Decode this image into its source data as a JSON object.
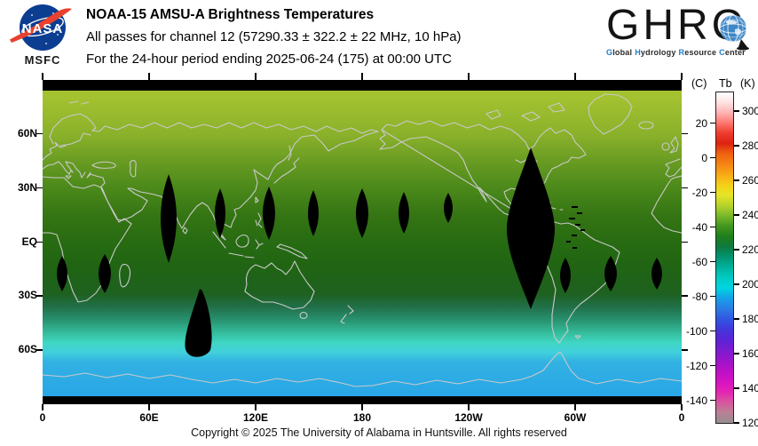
{
  "header": {
    "nasa": {
      "wordmark": "NASA",
      "center": "MSFC"
    },
    "title": "NOAA-15 AMSU-A Brightness Temperatures",
    "subtitle": "All passes for channel 12 (57290.33 ± 322.2 ± 22 MHz, 10 hPa)",
    "period_line": "For the 24-hour period ending 2025-06-24 (175) at 00:00 UTC",
    "ghrc": {
      "wordmark_prefix": "GHR",
      "wordmark_c": "C",
      "tagline": [
        {
          "initial": "G",
          "rest": "lobal"
        },
        {
          "initial": "H",
          "rest": "ydrology"
        },
        {
          "initial": "R",
          "rest": "esource"
        },
        {
          "initial": "C",
          "rest": "enter"
        }
      ],
      "initial_color": "#1f7dc4"
    }
  },
  "map": {
    "projection_note": "global cylindrical map, longitudes 0-360E left to right, 90N top to 90S bottom",
    "lat_ticks": [
      {
        "label": "60N",
        "lat": 60
      },
      {
        "label": "30N",
        "lat": 30
      },
      {
        "label": "EQ",
        "lat": 0
      },
      {
        "label": "30S",
        "lat": -30
      },
      {
        "label": "60S",
        "lat": -60
      }
    ],
    "lon_ticks": [
      {
        "label": "0",
        "lon": 0
      },
      {
        "label": "60E",
        "lon": 60
      },
      {
        "label": "120E",
        "lon": 120
      },
      {
        "label": "180",
        "lon": 180
      },
      {
        "label": "120W",
        "lon": 240
      },
      {
        "label": "60W",
        "lon": 300
      },
      {
        "label": "0",
        "lon": 360
      }
    ],
    "coastline_color": "#c9c9c9",
    "no_data_color": "#000000"
  },
  "colorbar": {
    "unit_celsius": "(C)",
    "quantity": "Tb",
    "unit_kelvin": "(K)",
    "kelvin_range": [
      119.7,
      311.5
    ],
    "kelvin_ticks": [
      300,
      280,
      260,
      240,
      220,
      200,
      180,
      160,
      140,
      120
    ],
    "celsius_ticks": [
      20,
      0,
      -20,
      -40,
      -60,
      -80,
      -100,
      -120,
      -140
    ],
    "gradient": [
      {
        "k": 311.5,
        "color": "#ffffff"
      },
      {
        "k": 306,
        "color": "#ffe4e4"
      },
      {
        "k": 300,
        "color": "#ffb6b6"
      },
      {
        "k": 294,
        "color": "#ff7a72"
      },
      {
        "k": 288,
        "color": "#ee3c2e"
      },
      {
        "k": 282,
        "color": "#dd2211"
      },
      {
        "k": 276,
        "color": "#ef6110"
      },
      {
        "k": 270,
        "color": "#f58313"
      },
      {
        "k": 264,
        "color": "#f8a915"
      },
      {
        "k": 258,
        "color": "#f6cf17"
      },
      {
        "k": 252,
        "color": "#e7e426"
      },
      {
        "k": 246,
        "color": "#b8d32a"
      },
      {
        "k": 240,
        "color": "#7ab829"
      },
      {
        "k": 234,
        "color": "#43971f"
      },
      {
        "k": 228,
        "color": "#1f7f1a"
      },
      {
        "k": 222,
        "color": "#0e7a40"
      },
      {
        "k": 216,
        "color": "#029470"
      },
      {
        "k": 210,
        "color": "#00b29d"
      },
      {
        "k": 204,
        "color": "#00cbc3"
      },
      {
        "k": 198,
        "color": "#00d5e2"
      },
      {
        "k": 192,
        "color": "#16a0e8"
      },
      {
        "k": 186,
        "color": "#2b7ce6"
      },
      {
        "k": 180,
        "color": "#3156e2"
      },
      {
        "k": 174,
        "color": "#4336dc"
      },
      {
        "k": 168,
        "color": "#5b24d6"
      },
      {
        "k": 162,
        "color": "#7b1cd0"
      },
      {
        "k": 156,
        "color": "#9c14ca"
      },
      {
        "k": 150,
        "color": "#bb10c6"
      },
      {
        "k": 144,
        "color": "#d512c2"
      },
      {
        "k": 138,
        "color": "#e322b4"
      },
      {
        "k": 132,
        "color": "#d9539f"
      },
      {
        "k": 126,
        "color": "#bb7f95"
      },
      {
        "k": 119.7,
        "color": "#958e90"
      }
    ]
  },
  "footer": {
    "copyright": "Copyright © 2025 The University of Alabama in Huntsville.  All rights reserved"
  },
  "chart_data": {
    "type": "heatmap",
    "title": "NOAA-15 AMSU-A Brightness Temperatures",
    "field": "brightness temperature Tb (K), channel 12 (57290.33 ± 322.2 ± 22 MHz, 10 hPa)",
    "period": "24-hour period ending 2025-06-24 (175) at 00:00 UTC",
    "colorbar_range_k": [
      120,
      311.5
    ],
    "zonal_mean_tb_k": [
      {
        "lat": 85,
        "tb": 248
      },
      {
        "lat": 60,
        "tb": 245
      },
      {
        "lat": 30,
        "tb": 238
      },
      {
        "lat": 0,
        "tb": 232
      },
      {
        "lat": -30,
        "tb": 228
      },
      {
        "lat": -45,
        "tb": 218
      },
      {
        "lat": -55,
        "tb": 208
      },
      {
        "lat": -62,
        "tb": 200
      },
      {
        "lat": -70,
        "tb": 196
      },
      {
        "lat": -85,
        "tb": 194
      }
    ],
    "no_data_regions": "black orbital-gap lenses near 15N at ~70E,100E,128E,152E,180,204E,228E; large lens 98W-82W from 50N to 35S; lenses near 20S at ~10E,35E,86W,60W,34W; large gap ~80E 35S-60S; polar strips at top and bottom edges"
  }
}
